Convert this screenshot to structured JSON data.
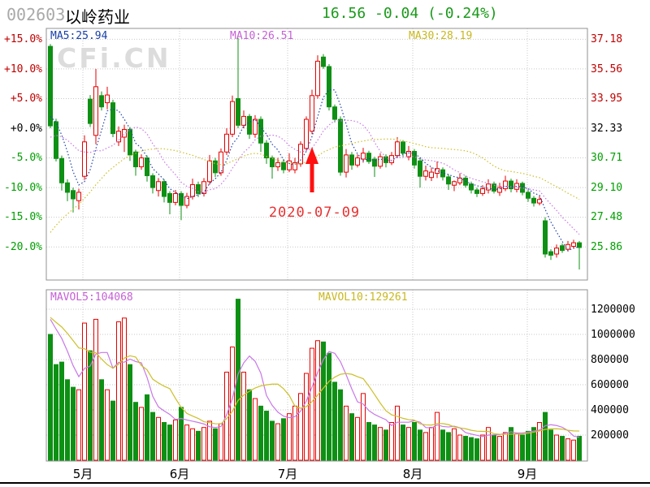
{
  "header": {
    "code": "002603",
    "name": "以岭药业",
    "price": "16.56",
    "change": "-0.04",
    "change_pct": "(-0.24%)"
  },
  "watermark": "CFi.CN",
  "annotation": {
    "date": "2020-07-09"
  },
  "main_chart": {
    "ma_labels": [
      {
        "text": "MA5:25.94",
        "color": "#1840a8"
      },
      {
        "text": "MA10:26.51",
        "color": "#c55fd6"
      },
      {
        "text": "MA30:28.19",
        "color": "#c8b820"
      }
    ],
    "left_axis": [
      {
        "text": "+15.0%",
        "color": "#c00000"
      },
      {
        "text": "+10.0%",
        "color": "#c00000"
      },
      {
        "text": "+5.0%",
        "color": "#c00000"
      },
      {
        "text": "+0.0%",
        "color": "#000000"
      },
      {
        "text": "-5.0%",
        "color": "#00a000"
      },
      {
        "text": "-10.0%",
        "color": "#00a000"
      },
      {
        "text": "-15.0%",
        "color": "#00a000"
      },
      {
        "text": "-20.0%",
        "color": "#00a000"
      }
    ],
    "right_axis": [
      {
        "text": "37.18",
        "color": "#c00000"
      },
      {
        "text": "35.56",
        "color": "#c00000"
      },
      {
        "text": "33.95",
        "color": "#c00000"
      },
      {
        "text": "32.33",
        "color": "#000000"
      },
      {
        "text": "30.71",
        "color": "#00a000"
      },
      {
        "text": "29.10",
        "color": "#00a000"
      },
      {
        "text": "27.48",
        "color": "#00a000"
      },
      {
        "text": "25.86",
        "color": "#00a000"
      }
    ]
  },
  "volume_chart": {
    "mavol_labels": [
      {
        "text": "MAVOL5:104068",
        "color": "#c55fd6"
      },
      {
        "text": "MAVOL10:129261",
        "color": "#c8b820"
      }
    ],
    "right_axis": [
      "1200000",
      "1000000",
      "800000",
      "600000",
      "400000",
      "200000"
    ]
  },
  "x_axis": {
    "months": [
      "5月",
      "6月",
      "7月",
      "8月",
      "9月"
    ]
  },
  "colors": {
    "up": "#e60000",
    "down": "#0e9014",
    "ma5": "#2244aa",
    "ma10": "#c878e8",
    "ma30": "#ccc028",
    "grid": "#c9c9c9",
    "border": "#909090",
    "arrow": "#ff1010",
    "quote_green": "#1a9a1a"
  },
  "chart_data": {
    "type": "candlestick+volume",
    "baseline_price": 32.33,
    "pct_axis": [
      15,
      10,
      5,
      0,
      -5,
      -10,
      -15,
      -20
    ],
    "price_axis": [
      37.18,
      35.56,
      33.95,
      32.33,
      30.71,
      29.1,
      27.48,
      25.86
    ],
    "vol_axis": [
      1200000,
      1000000,
      800000,
      600000,
      400000,
      200000
    ],
    "months": [
      "5月",
      "6月",
      "7月",
      "8月",
      "9月"
    ],
    "note_ohlc_format": "percent change vs baseline 32.33, order [open,high,low,close]",
    "candles": [
      [
        13.8,
        14.2,
        0.0,
        0.4
      ],
      [
        1.1,
        1.6,
        -5.6,
        -5.1
      ],
      [
        -5.1,
        -4.6,
        -10.5,
        -9.2
      ],
      [
        -9.2,
        -8.6,
        -12.3,
        -10.8
      ],
      [
        -10.5,
        -10.0,
        -14.2,
        -11.9
      ],
      [
        -12.2,
        -10.2,
        -13.7,
        -10.8
      ],
      [
        -8.1,
        -1.2,
        -8.7,
        -2.3
      ],
      [
        4.9,
        5.6,
        0.2,
        0.8
      ],
      [
        -1.2,
        10.0,
        -2.7,
        7.0
      ],
      [
        5.5,
        6.2,
        3.0,
        3.6
      ],
      [
        4.3,
        7.0,
        3.2,
        5.6
      ],
      [
        4.3,
        4.8,
        -1.5,
        -0.9
      ],
      [
        -2.3,
        0.3,
        -3.0,
        -0.5
      ],
      [
        -1.5,
        0.6,
        -4.0,
        -0.2
      ],
      [
        -0.2,
        0.2,
        -5.5,
        -4.5
      ],
      [
        -4.0,
        -3.6,
        -8.0,
        -6.5
      ],
      [
        -6.5,
        -4.4,
        -7.0,
        -5.0
      ],
      [
        -5.0,
        -4.6,
        -9.0,
        -8.0
      ],
      [
        -8.0,
        -7.6,
        -11.0,
        -10.0
      ],
      [
        -10.5,
        -8.4,
        -11.5,
        -9.0
      ],
      [
        -9.0,
        -8.6,
        -12.5,
        -11.5
      ],
      [
        -11.0,
        -10.6,
        -14.5,
        -12.5
      ],
      [
        -12.5,
        -10.4,
        -13.0,
        -11.0
      ],
      [
        -11.0,
        -10.6,
        -15.5,
        -13.0
      ],
      [
        -13.0,
        -10.9,
        -13.5,
        -11.5
      ],
      [
        -11.5,
        -8.5,
        -12.0,
        -9.5
      ],
      [
        -9.5,
        -9.0,
        -11.6,
        -11.0
      ],
      [
        -11.0,
        -8.4,
        -11.5,
        -9.0
      ],
      [
        -9.0,
        -4.5,
        -9.5,
        -5.5
      ],
      [
        -5.5,
        -5.0,
        -8.2,
        -7.5
      ],
      [
        -7.5,
        -3.4,
        -8.0,
        -4.0
      ],
      [
        -4.0,
        0.0,
        -4.5,
        -1.0
      ],
      [
        -1.0,
        5.5,
        -1.5,
        4.5
      ],
      [
        5.0,
        15.2,
        0.0,
        0.5
      ],
      [
        0.5,
        3.0,
        0.0,
        2.0
      ],
      [
        2.0,
        2.4,
        -1.8,
        -1.0
      ],
      [
        -1.0,
        2.2,
        -1.6,
        1.5
      ],
      [
        1.5,
        2.0,
        -4.0,
        -2.5
      ],
      [
        -2.5,
        -2.0,
        -6.0,
        -5.0
      ],
      [
        -5.0,
        -4.6,
        -8.5,
        -6.5
      ],
      [
        -6.5,
        -5.0,
        -7.2,
        -5.8
      ],
      [
        -5.8,
        -5.2,
        -7.6,
        -7.0
      ],
      [
        -7.0,
        -4.2,
        -7.4,
        -5.5
      ],
      [
        -7.0,
        -5.0,
        -7.6,
        -5.8
      ],
      [
        -6.0,
        -2.2,
        -6.5,
        -2.7
      ],
      [
        -3.4,
        2.0,
        -3.8,
        1.5
      ],
      [
        -0.5,
        6.5,
        -1.0,
        5.5
      ],
      [
        5.5,
        12.3,
        5.0,
        11.3
      ],
      [
        12.0,
        12.5,
        10.0,
        10.4
      ],
      [
        10.4,
        10.8,
        3.0,
        3.6
      ],
      [
        3.6,
        4.0,
        1.0,
        1.5
      ],
      [
        1.5,
        2.0,
        -8.0,
        -7.4
      ],
      [
        -7.4,
        -3.5,
        -8.3,
        -4.5
      ],
      [
        -4.5,
        -4.0,
        -7.0,
        -6.2
      ],
      [
        -6.2,
        -4.4,
        -6.6,
        -5.0
      ],
      [
        -5.2,
        -3.3,
        -5.8,
        -4.2
      ],
      [
        -4.2,
        -3.8,
        -6.0,
        -5.6
      ],
      [
        -5.2,
        -4.8,
        -8.2,
        -6.4
      ],
      [
        -6.4,
        -4.2,
        -6.8,
        -4.8
      ],
      [
        -4.8,
        -4.4,
        -6.6,
        -5.8
      ],
      [
        -5.8,
        -4.0,
        -6.2,
        -4.6
      ],
      [
        -4.6,
        -1.5,
        -5.0,
        -2.3
      ],
      [
        -2.3,
        -2.0,
        -4.8,
        -4.2
      ],
      [
        -4.8,
        -3.0,
        -5.4,
        -3.9
      ],
      [
        -3.9,
        -3.5,
        -6.8,
        -6.2
      ],
      [
        -5.5,
        -5.0,
        -10.0,
        -8.1
      ],
      [
        -8.1,
        -6.3,
        -8.8,
        -7.2
      ],
      [
        -8.3,
        -6.6,
        -8.9,
        -7.4
      ],
      [
        -7.6,
        -5.6,
        -8.4,
        -6.8
      ],
      [
        -7.0,
        -6.6,
        -8.8,
        -8.2
      ],
      [
        -8.2,
        -7.8,
        -10.4,
        -9.4
      ],
      [
        -9.6,
        -8.8,
        -10.6,
        -9.0
      ],
      [
        -9.2,
        -7.6,
        -9.6,
        -8.4
      ],
      [
        -8.4,
        -8.0,
        -10.0,
        -9.6
      ],
      [
        -9.4,
        -9.0,
        -11.0,
        -10.4
      ],
      [
        -10.4,
        -10.0,
        -11.6,
        -11.0
      ],
      [
        -11.0,
        -9.6,
        -11.4,
        -10.2
      ],
      [
        -10.4,
        -8.6,
        -11.0,
        -9.4
      ],
      [
        -9.4,
        -9.0,
        -11.0,
        -10.6
      ],
      [
        -10.8,
        -9.2,
        -11.4,
        -10.0
      ],
      [
        -10.2,
        -8.0,
        -10.6,
        -8.9
      ],
      [
        -8.9,
        -8.5,
        -10.8,
        -10.2
      ],
      [
        -10.3,
        -8.6,
        -10.8,
        -9.3
      ],
      [
        -9.3,
        -9.0,
        -11.3,
        -10.8
      ],
      [
        -10.8,
        -10.4,
        -12.4,
        -11.8
      ],
      [
        -11.8,
        -11.4,
        -13.2,
        -12.6
      ],
      [
        -12.6,
        -11.4,
        -13.0,
        -12.0
      ],
      [
        -15.6,
        -15.0,
        -21.8,
        -21.2
      ],
      [
        -20.8,
        -20.4,
        -22.2,
        -21.4
      ],
      [
        -21.2,
        -19.6,
        -21.8,
        -20.2
      ],
      [
        -19.8,
        -19.4,
        -21.0,
        -20.6
      ],
      [
        -20.4,
        -19.0,
        -20.8,
        -19.6
      ],
      [
        -19.9,
        -18.8,
        -20.3,
        -19.3
      ],
      [
        -19.3,
        -19.0,
        -23.8,
        -20.1
      ]
    ],
    "volumes": [
      1000000,
      760000,
      780000,
      640000,
      580000,
      560000,
      1090000,
      870000,
      1120000,
      640000,
      560000,
      470000,
      1100000,
      1130000,
      760000,
      460000,
      420000,
      520000,
      380000,
      340000,
      300000,
      280000,
      320000,
      420000,
      280000,
      250000,
      230000,
      260000,
      310000,
      250000,
      290000,
      700000,
      900000,
      1280000,
      700000,
      560000,
      490000,
      430000,
      390000,
      310000,
      290000,
      330000,
      370000,
      430000,
      530000,
      690000,
      890000,
      950000,
      940000,
      850000,
      620000,
      560000,
      430000,
      370000,
      340000,
      530000,
      300000,
      280000,
      260000,
      240000,
      300000,
      430000,
      280000,
      260000,
      300000,
      240000,
      220000,
      260000,
      380000,
      240000,
      220000,
      250000,
      200000,
      190000,
      180000,
      170000,
      200000,
      260000,
      200000,
      190000,
      220000,
      260000,
      210000,
      200000,
      230000,
      260000,
      300000,
      380000,
      240000,
      200000,
      190000,
      170000,
      160000,
      190000
    ],
    "arrow_candle_index": 46
  }
}
